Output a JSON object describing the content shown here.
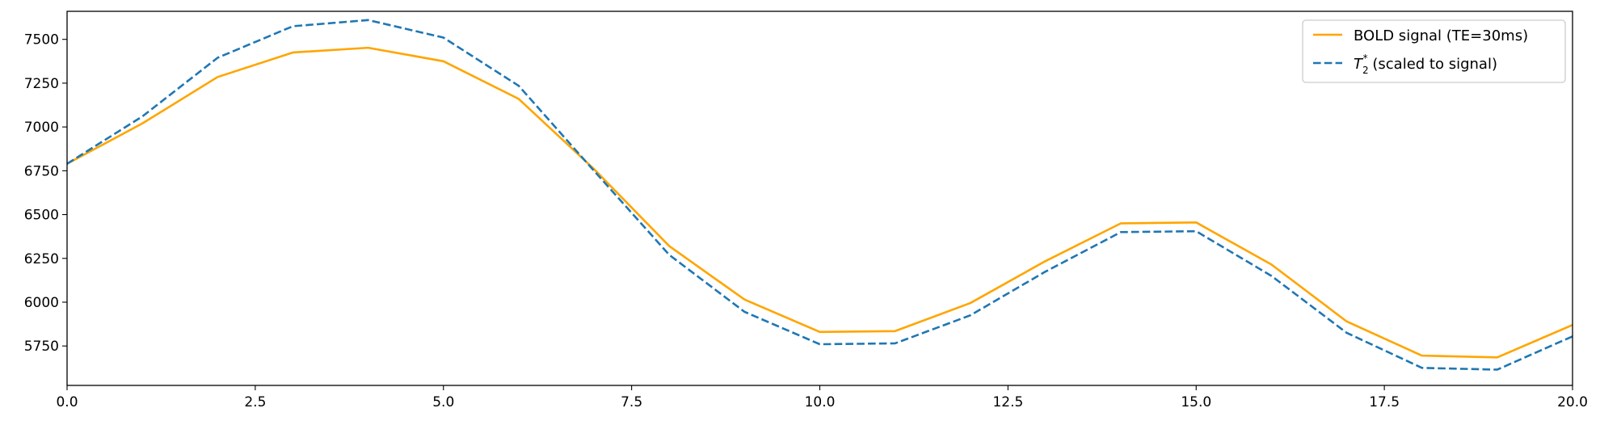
{
  "chart_data": {
    "type": "line",
    "title": "",
    "xlabel": "",
    "ylabel": "",
    "xlim": [
      0,
      20
    ],
    "ylim": [
      5525,
      7660
    ],
    "x_ticks": [
      0.0,
      2.5,
      5.0,
      7.5,
      10.0,
      12.5,
      15.0,
      17.5,
      20.0
    ],
    "x_tick_labels": [
      "0.0",
      "2.5",
      "5.0",
      "7.5",
      "10.0",
      "12.5",
      "15.0",
      "17.5",
      "20.0"
    ],
    "y_ticks": [
      5750,
      6000,
      6250,
      6500,
      6750,
      7000,
      7250,
      7500
    ],
    "y_tick_labels": [
      "5750",
      "6000",
      "6250",
      "6500",
      "6750",
      "7000",
      "7250",
      "7500"
    ],
    "grid": false,
    "legend_position": "top-right",
    "x": [
      0,
      1,
      2,
      3,
      4,
      5,
      6,
      7,
      8,
      9,
      10,
      11,
      12,
      13,
      14,
      15,
      16,
      17,
      18,
      19,
      20
    ],
    "series": [
      {
        "name": "BOLD signal (TE=30ms)",
        "color": "#ffa500",
        "style": "solid",
        "values": [
          6790,
          7020,
          7285,
          7425,
          7452,
          7375,
          7160,
          6760,
          6320,
          6015,
          5830,
          5835,
          5995,
          6235,
          6450,
          6455,
          6215,
          5890,
          5695,
          5685,
          5870
        ]
      },
      {
        "name": "T₂* (scaled to signal)",
        "name_base": "T",
        "name_sub": "2",
        "name_sup": "*",
        "name_rest": " (scaled to signal)",
        "color": "#1f77b4",
        "style": "dashed",
        "values": [
          6790,
          7060,
          7395,
          7575,
          7610,
          7510,
          7235,
          6750,
          6270,
          5945,
          5760,
          5765,
          5925,
          6175,
          6400,
          6405,
          6150,
          5825,
          5625,
          5615,
          5805
        ]
      }
    ]
  }
}
